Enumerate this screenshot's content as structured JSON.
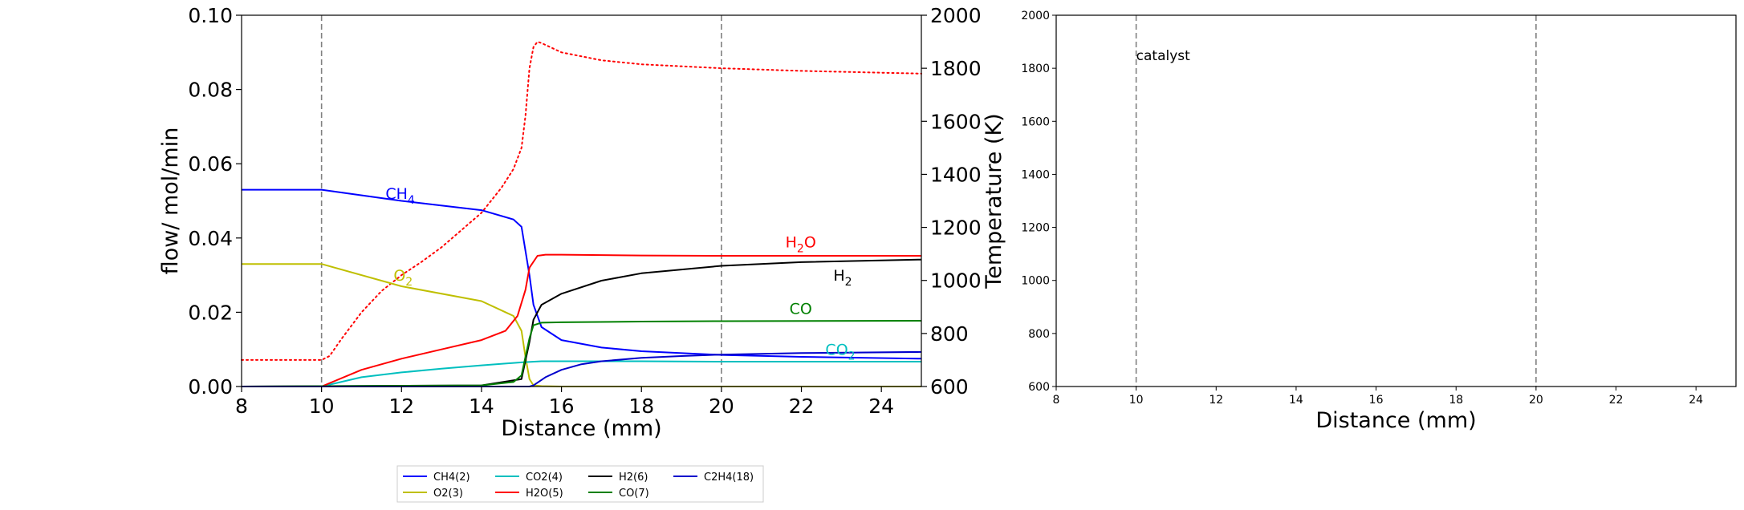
{
  "chart_data": [
    {
      "type": "line",
      "xlabel": "Distance (mm)",
      "ylabel": "flow/ mol/min",
      "y2label": "Temperature (K)",
      "xlim": [
        8,
        25
      ],
      "ylim": [
        0,
        0.1
      ],
      "y2lim": [
        600,
        2000
      ],
      "xticks": [
        8,
        10,
        12,
        14,
        16,
        18,
        20,
        22,
        24
      ],
      "xtick_labels": [
        "8",
        "10",
        "12",
        "14",
        "16",
        "18",
        "20",
        "22",
        "24"
      ],
      "yticks": [
        0,
        0.02,
        0.04,
        0.06,
        0.08,
        0.1
      ],
      "ytick_labels": [
        "0.00",
        "0.02",
        "0.04",
        "0.06",
        "0.08",
        "0.10"
      ],
      "y2ticks": [
        600,
        800,
        1000,
        1200,
        1400,
        1600,
        1800,
        2000
      ],
      "y2tick_labels": [
        "600",
        "800",
        "1000",
        "1200",
        "1400",
        "1600",
        "1800",
        "2000"
      ],
      "vlines": [
        10,
        20
      ],
      "grid": false,
      "legend_position": "below",
      "series": [
        {
          "name": "CH4(2)",
          "color": "#0000ff",
          "axis": "left",
          "x": [
            8,
            10,
            12,
            14,
            14.8,
            15.0,
            15.2,
            15.3,
            15.5,
            16,
            17,
            18,
            20,
            22,
            25
          ],
          "y": [
            0.053,
            0.053,
            0.05,
            0.0475,
            0.045,
            0.043,
            0.03,
            0.022,
            0.016,
            0.0125,
            0.0105,
            0.0095,
            0.0085,
            0.008,
            0.0075
          ]
        },
        {
          "name": "O2(3)",
          "color": "#bfbf00",
          "axis": "left",
          "x": [
            8,
            10,
            12,
            14,
            14.8,
            15.0,
            15.1,
            15.2,
            15.3,
            15.5,
            16,
            25
          ],
          "y": [
            0.033,
            0.033,
            0.027,
            0.023,
            0.019,
            0.015,
            0.008,
            0.002,
            0.0003,
            0.0001,
            0.0,
            0.0
          ]
        },
        {
          "name": "CO2(4)",
          "color": "#00bfbf",
          "axis": "left",
          "x": [
            8,
            10,
            11,
            12,
            13,
            14,
            15,
            15.5,
            16,
            18,
            20,
            25
          ],
          "y": [
            0.0,
            0.0,
            0.0025,
            0.0038,
            0.0048,
            0.0057,
            0.0065,
            0.0068,
            0.0068,
            0.0068,
            0.0067,
            0.0067
          ]
        },
        {
          "name": "H2O(5)",
          "color": "#ff0000",
          "axis": "left",
          "x": [
            8,
            10,
            11,
            12,
            13,
            14,
            14.6,
            14.9,
            15.1,
            15.2,
            15.4,
            15.6,
            16,
            18,
            20,
            25
          ],
          "y": [
            0.0,
            0.0,
            0.0045,
            0.0075,
            0.01,
            0.0125,
            0.015,
            0.019,
            0.026,
            0.032,
            0.0352,
            0.0355,
            0.0355,
            0.0353,
            0.0352,
            0.0352
          ]
        },
        {
          "name": "H2(6)",
          "color": "#000000",
          "axis": "left",
          "x": [
            8,
            14,
            15,
            15.2,
            15.3,
            15.5,
            16,
            17,
            18,
            20,
            22,
            25
          ],
          "y": [
            0.0,
            0.0003,
            0.002,
            0.012,
            0.018,
            0.022,
            0.025,
            0.0285,
            0.0305,
            0.0325,
            0.0335,
            0.0342
          ]
        },
        {
          "name": "CO(7)",
          "color": "#008000",
          "axis": "left",
          "x": [
            8,
            14,
            14.8,
            15.0,
            15.2,
            15.3,
            15.5,
            16,
            18,
            20,
            25
          ],
          "y": [
            0.0,
            0.0003,
            0.0012,
            0.003,
            0.013,
            0.0165,
            0.0172,
            0.0173,
            0.0175,
            0.0176,
            0.0177
          ]
        },
        {
          "name": "C2H4(18)",
          "color": "#0000cc",
          "axis": "left",
          "x": [
            8,
            15.2,
            15.3,
            15.6,
            16,
            16.5,
            17,
            18,
            19,
            20,
            22,
            25
          ],
          "y": [
            0.0,
            0.0,
            0.0003,
            0.0025,
            0.0045,
            0.006,
            0.0068,
            0.0077,
            0.0082,
            0.0086,
            0.009,
            0.0093
          ]
        }
      ],
      "temperature": {
        "color": "#ff0000",
        "style": "dotted",
        "axis": "right",
        "x": [
          8,
          10,
          10.2,
          10.5,
          11,
          11.5,
          12,
          12.5,
          13,
          13.5,
          14,
          14.5,
          14.8,
          15,
          15.1,
          15.2,
          15.3,
          15.4,
          15.5,
          16,
          17,
          18,
          20,
          22,
          25
        ],
        "y": [
          700,
          700,
          715,
          780,
          880,
          960,
          1020,
          1070,
          1125,
          1190,
          1255,
          1350,
          1420,
          1500,
          1620,
          1800,
          1880,
          1900,
          1895,
          1860,
          1830,
          1815,
          1800,
          1790,
          1780
        ]
      },
      "labels": [
        {
          "base": "CH",
          "sub": "4",
          "color": "#0000ff",
          "x": 11.6,
          "y": 0.0505
        },
        {
          "base": "O",
          "sub": "2",
          "color": "#bfbf00",
          "x": 11.8,
          "y": 0.0285
        },
        {
          "base": "H",
          "sub": "2",
          "tail": "O",
          "color": "#ff0000",
          "x": 21.6,
          "y": 0.0375
        },
        {
          "base": "H",
          "sub": "2",
          "color": "#000000",
          "x": 22.8,
          "y": 0.0285
        },
        {
          "base": "CO",
          "sub": "",
          "color": "#008000",
          "x": 21.7,
          "y": 0.0195
        },
        {
          "base": "CO",
          "sub": "2",
          "color": "#00bfbf",
          "x": 22.6,
          "y": 0.0085
        }
      ]
    },
    {
      "type": "line",
      "xlabel": "Distance (mm)",
      "xlim": [
        8,
        25
      ],
      "ylim": [
        600,
        2000
      ],
      "xticks": [
        8,
        10,
        12,
        14,
        16,
        18,
        20,
        22,
        24
      ],
      "xtick_labels": [
        "8",
        "10",
        "12",
        "14",
        "16",
        "18",
        "20",
        "22",
        "24"
      ],
      "yticks": [
        600,
        800,
        1000,
        1200,
        1400,
        1600,
        1800,
        2000
      ],
      "ytick_labels": [
        "600",
        "800",
        "1000",
        "1200",
        "1400",
        "1600",
        "1800",
        "2000"
      ],
      "vlines": [
        10,
        20
      ],
      "annotation": {
        "text": "catalyst",
        "x": 10,
        "y": 1830
      },
      "grid": false,
      "series": []
    }
  ]
}
